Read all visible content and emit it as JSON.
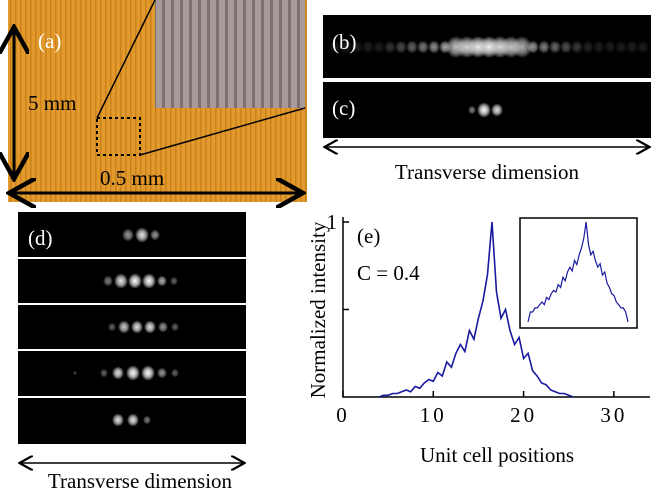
{
  "panels": {
    "a": {
      "label": "(a)",
      "height_label": "5 mm",
      "width_label": "0.5 mm"
    },
    "b": {
      "label": "(b)"
    },
    "c": {
      "label": "(c)",
      "axis_label": "Transverse dimension"
    },
    "d": {
      "label": "(d)",
      "axis_label": "Transverse dimension"
    }
  },
  "chart_data": {
    "type": "line",
    "label": "(e)",
    "annotation": "C = 0.4",
    "xlabel": "Unit cell positions",
    "ylabel": "Normalized intensity",
    "color": "#1a1aa0",
    "xlim": [
      0,
      34
    ],
    "ylim": [
      0,
      1
    ],
    "xticks": [
      0,
      10,
      20,
      30
    ],
    "yticks": [
      1
    ],
    "minor_yticks": [
      0.5
    ],
    "x": [
      4,
      4.5,
      5,
      5.5,
      6,
      6.5,
      7,
      7.5,
      8,
      8.5,
      9,
      9.5,
      10,
      10.5,
      11,
      11.5,
      12,
      12.5,
      13,
      13.5,
      14,
      14.5,
      15,
      15.5,
      16,
      16.5,
      17,
      17.5,
      18,
      18.5,
      19,
      19.5,
      20,
      20.5,
      21,
      21.5,
      22,
      22.5,
      23,
      23.5,
      24,
      24.5,
      25,
      25.5
    ],
    "values": [
      0,
      0.01,
      0.01,
      0.02,
      0.02,
      0.03,
      0.04,
      0.03,
      0.06,
      0.05,
      0.08,
      0.1,
      0.09,
      0.14,
      0.12,
      0.2,
      0.17,
      0.25,
      0.3,
      0.26,
      0.38,
      0.33,
      0.45,
      0.55,
      0.7,
      1,
      0.6,
      0.45,
      0.5,
      0.38,
      0.3,
      0.34,
      0.22,
      0.25,
      0.15,
      0.12,
      0.08,
      0.07,
      0.04,
      0.03,
      0.02,
      0.02,
      0.01,
      0
    ]
  }
}
